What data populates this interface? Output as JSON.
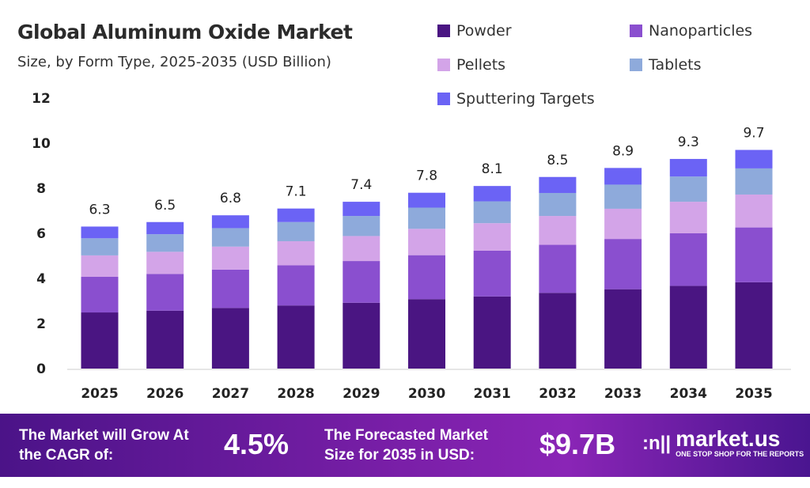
{
  "chart_data": {
    "type": "bar",
    "stacked": true,
    "title": "Global Aluminum Oxide Market",
    "subtitle": "Size, by Form Type, 2025-2035 (USD Billion)",
    "xlabel": "",
    "ylabel": "",
    "ylim": [
      0,
      12
    ],
    "yticks": [
      0,
      2,
      4,
      6,
      8,
      10,
      12
    ],
    "grid": false,
    "legend_position": "top-right",
    "categories": [
      "2025",
      "2026",
      "2027",
      "2028",
      "2029",
      "2030",
      "2031",
      "2032",
      "2033",
      "2034",
      "2035"
    ],
    "totals": [
      "6.3",
      "6.5",
      "6.8",
      "7.1",
      "7.4",
      "7.8",
      "8.1",
      "8.5",
      "8.9",
      "9.3",
      "9.7"
    ],
    "series": [
      {
        "name": "Powder",
        "color": "#4a1582",
        "values": [
          2.49,
          2.57,
          2.69,
          2.8,
          2.92,
          3.08,
          3.2,
          3.36,
          3.52,
          3.67,
          3.83
        ]
      },
      {
        "name": "Nanoparticles",
        "color": "#8a4fcf",
        "values": [
          1.58,
          1.63,
          1.7,
          1.78,
          1.85,
          1.95,
          2.03,
          2.13,
          2.23,
          2.33,
          2.43
        ]
      },
      {
        "name": "Pellets",
        "color": "#d3a4e8",
        "values": [
          0.95,
          0.98,
          1.02,
          1.07,
          1.11,
          1.17,
          1.22,
          1.28,
          1.34,
          1.4,
          1.46
        ]
      },
      {
        "name": "Tablets",
        "color": "#8eaadb",
        "values": [
          0.76,
          0.78,
          0.82,
          0.85,
          0.89,
          0.94,
          0.97,
          1.02,
          1.07,
          1.12,
          1.16
        ]
      },
      {
        "name": "Sputtering Targets",
        "color": "#6b63f5",
        "values": [
          0.52,
          0.54,
          0.57,
          0.6,
          0.63,
          0.66,
          0.68,
          0.71,
          0.74,
          0.78,
          0.82
        ]
      }
    ]
  },
  "banner": {
    "cagr_label": "The Market will Grow At the CAGR of:",
    "cagr_value": "4.5%",
    "forecast_label": "The Forecasted Market Size for 2035 in USD:",
    "forecast_value": "$9.7B",
    "logo_name": "market.us",
    "logo_tagline": "ONE STOP SHOP FOR THE REPORTS"
  }
}
